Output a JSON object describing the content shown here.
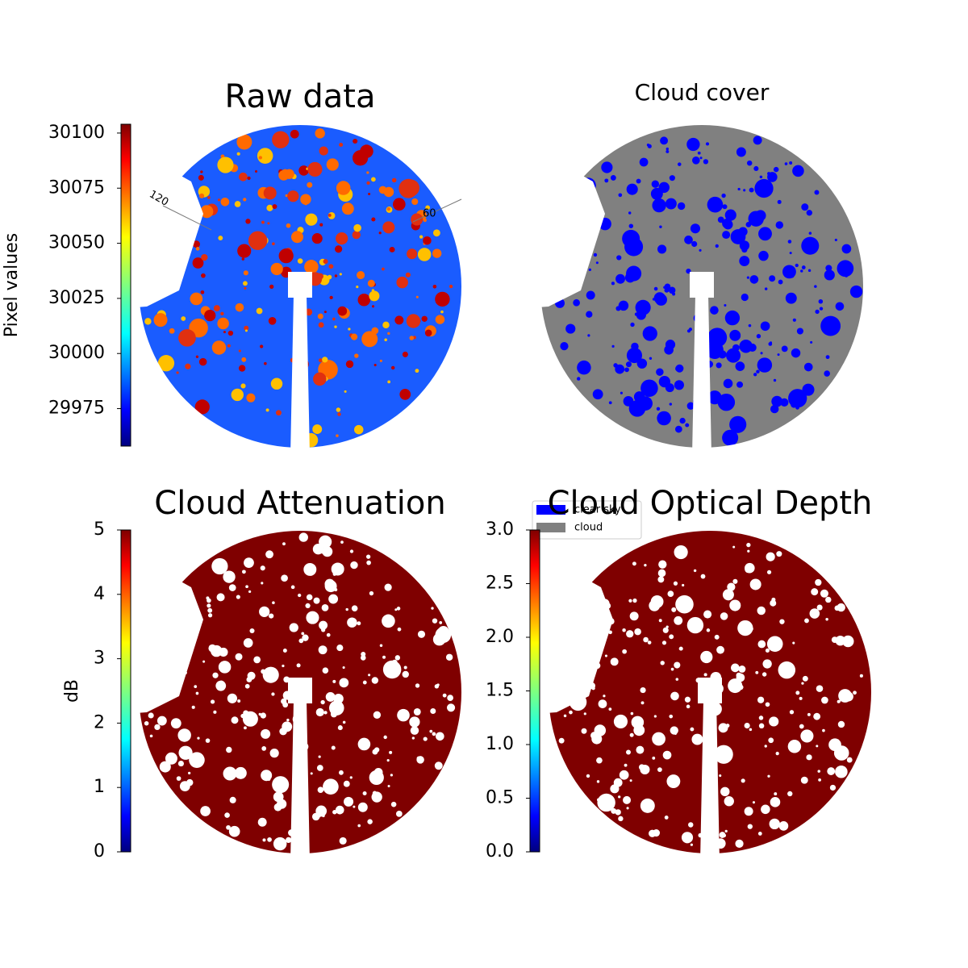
{
  "chart_data": [
    {
      "type": "image",
      "title": "Raw data",
      "annotations": [
        "120",
        "60"
      ],
      "colorbar": {
        "label": "Pixel values",
        "ylim": [
          29958,
          30104
        ],
        "yticks": [
          29975,
          30000,
          30025,
          30050,
          30075,
          30100
        ]
      }
    },
    {
      "type": "image",
      "title": "Cloud cover",
      "series": [
        {
          "name": "clear sky",
          "color": "#0000ff"
        },
        {
          "name": "cloud",
          "color": "#808080"
        }
      ]
    },
    {
      "type": "image",
      "title": "Cloud Attenuation",
      "colorbar": {
        "label": "dB",
        "ylim": [
          0,
          5
        ],
        "yticks": [
          0,
          1,
          2,
          3,
          4,
          5
        ]
      }
    },
    {
      "type": "image",
      "title": "Cloud Optical Depth",
      "colorbar": {
        "ylim": [
          0,
          3
        ],
        "yticks": [
          {
            "value": 0,
            "label": "0.0"
          },
          {
            "value": 0.5,
            "label": "0.5"
          },
          {
            "value": 1,
            "label": "1.0"
          },
          {
            "value": 1.5,
            "label": "1.5"
          },
          {
            "value": 2,
            "label": "2.0"
          },
          {
            "value": 2.5,
            "label": "2.5"
          },
          {
            "value": 3,
            "label": "3.0"
          }
        ]
      }
    }
  ]
}
